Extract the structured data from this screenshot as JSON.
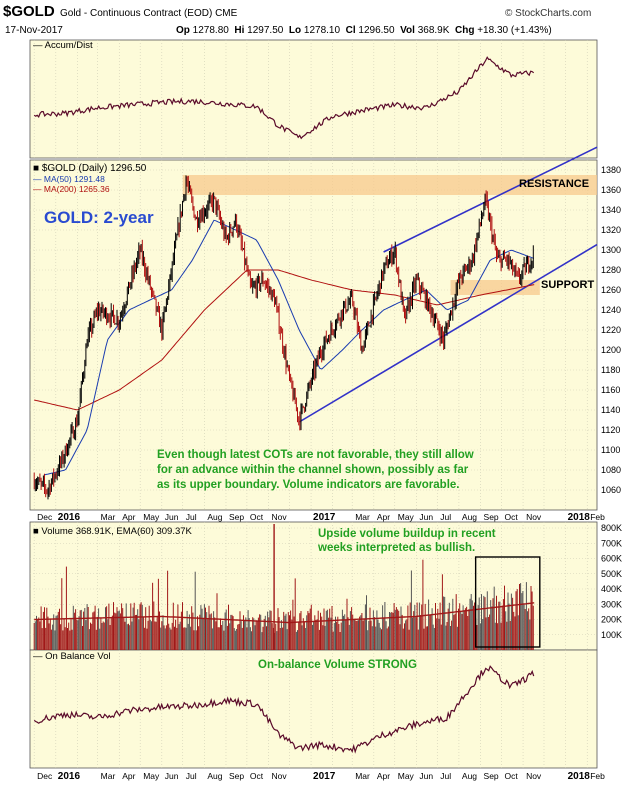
{
  "header": {
    "symbol": "$GOLD",
    "name": "Gold - Continuous Contract (EOD)",
    "exchange": "CME",
    "brand": "© StockCharts.com",
    "date": "17-Nov-2017",
    "op_label": "Op",
    "op": "1278.80",
    "hi_label": "Hi",
    "hi": "1297.50",
    "lo_label": "Lo",
    "lo": "1278.10",
    "cl_label": "Cl",
    "cl": "1296.50",
    "vol_label": "Vol",
    "vol": "368.9K",
    "chg_label": "Chg",
    "chg": "+18.30 (+1.43%)"
  },
  "colors": {
    "panel_bg": "#fdfbd9",
    "price": "#000000",
    "ma50": "#1a3cb0",
    "ma200": "#b01010",
    "channel": "#3232c8",
    "band": "#f7c98c",
    "annotation": "#22a022",
    "vol_bar": "#a01818",
    "box": "#000000"
  },
  "chart_data": [
    {
      "type": "line",
      "panel": "accum-dist",
      "title": "Accum/Dist",
      "grid": true,
      "series": [
        {
          "name": "Accum/Dist",
          "x": [
            "2015-12-01",
            "2016-01-15",
            "2016-03-01",
            "2016-04-15",
            "2016-06-01",
            "2016-07-15",
            "2016-09-01",
            "2016-10-15",
            "2016-11-15",
            "2016-12-15",
            "2017-02-01",
            "2017-03-15",
            "2017-05-01",
            "2017-06-15",
            "2017-08-01",
            "2017-09-10",
            "2017-10-15",
            "2017-11-17"
          ],
          "y": [
            41,
            42,
            46,
            48,
            50,
            51,
            49,
            47,
            33,
            24,
            40,
            44,
            48,
            46,
            58,
            82,
            70,
            72
          ]
        }
      ]
    },
    {
      "type": "line",
      "panel": "price",
      "legend": [
        "$GOLD (Daily) 1296.50",
        "MA(50) 1291.48",
        "MA(200) 1265.36"
      ],
      "ylim": [
        1040,
        1390
      ],
      "yticks": [
        "1060",
        "1080",
        "1100",
        "1120",
        "1140",
        "1160",
        "1180",
        "1200",
        "1220",
        "1240",
        "1260",
        "1280",
        "1300",
        "1320",
        "1340",
        "1360",
        "1380"
      ],
      "grid": true,
      "series": [
        {
          "name": "$GOLD (Daily)",
          "x": [
            "2015-12-01",
            "2015-12-20",
            "2016-01-10",
            "2016-02-01",
            "2016-02-15",
            "2016-03-01",
            "2016-04-01",
            "2016-05-01",
            "2016-06-01",
            "2016-06-15",
            "2016-07-06",
            "2016-07-20",
            "2016-08-15",
            "2016-09-01",
            "2016-09-15",
            "2016-10-07",
            "2016-10-25",
            "2016-11-10",
            "2016-12-01",
            "2016-12-15",
            "2017-01-15",
            "2017-02-15",
            "2017-03-01",
            "2017-03-15",
            "2017-04-15",
            "2017-05-01",
            "2017-05-15",
            "2017-06-01",
            "2017-06-15",
            "2017-07-10",
            "2017-08-01",
            "2017-08-20",
            "2017-09-08",
            "2017-09-25",
            "2017-10-10",
            "2017-10-25",
            "2017-11-17"
          ],
          "y": [
            1070,
            1060,
            1090,
            1130,
            1210,
            1240,
            1230,
            1300,
            1220,
            1280,
            1370,
            1330,
            1350,
            1310,
            1330,
            1260,
            1270,
            1250,
            1170,
            1130,
            1200,
            1240,
            1250,
            1200,
            1280,
            1300,
            1230,
            1270,
            1250,
            1210,
            1270,
            1290,
            1350,
            1290,
            1290,
            1270,
            1296.5
          ]
        },
        {
          "name": "MA(50)",
          "x": [
            "2015-12-15",
            "2016-01-15",
            "2016-02-15",
            "2016-03-15",
            "2016-04-15",
            "2016-05-15",
            "2016-06-15",
            "2016-07-15",
            "2016-08-15",
            "2016-09-15",
            "2016-10-15",
            "2016-11-15",
            "2016-12-15",
            "2017-01-15",
            "2017-02-15",
            "2017-03-15",
            "2017-04-15",
            "2017-05-15",
            "2017-06-15",
            "2017-07-15",
            "2017-08-15",
            "2017-09-15",
            "2017-10-15",
            "2017-11-17"
          ],
          "y": [
            1075,
            1080,
            1120,
            1210,
            1240,
            1250,
            1260,
            1290,
            1330,
            1320,
            1310,
            1270,
            1220,
            1180,
            1200,
            1220,
            1240,
            1250,
            1260,
            1240,
            1250,
            1290,
            1300,
            1291.48
          ]
        },
        {
          "name": "MA(200)",
          "x": [
            "2015-12-01",
            "2016-02-01",
            "2016-04-01",
            "2016-06-01",
            "2016-08-01",
            "2016-10-01",
            "2016-11-15",
            "2017-01-01",
            "2017-03-01",
            "2017-05-01",
            "2017-07-01",
            "2017-09-01",
            "2017-11-17"
          ],
          "y": [
            1150,
            1140,
            1160,
            1190,
            1240,
            1280,
            1280,
            1270,
            1260,
            1255,
            1245,
            1255,
            1265.36
          ]
        }
      ],
      "annotations": [
        {
          "text": "GOLD: 2-year",
          "kind": "label"
        },
        {
          "text": "RESISTANCE",
          "kind": "label"
        },
        {
          "text": "SUPPORT",
          "kind": "label"
        },
        {
          "text": "Even though latest COTs are not favorable, they still allow",
          "kind": "note"
        },
        {
          "text": "for an advance within the channel shown, possibly as far",
          "kind": "note"
        },
        {
          "text": "as its upper boundary. Volume indicators are favorable.",
          "kind": "note"
        }
      ],
      "resistance_band": [
        1355,
        1375
      ],
      "support_band": [
        1255,
        1270
      ],
      "channel_lower": {
        "x": [
          "2016-12-15",
          "2017-11-17"
        ],
        "y": [
          1128,
          1268
        ]
      },
      "channel_upper": {
        "x": [
          "2017-04-15",
          "2017-11-17"
        ],
        "y": [
          1298,
          1372
        ]
      },
      "x_ticks": [
        "Dec",
        "2016",
        "Mar",
        "Apr",
        "May",
        "Jun",
        "Jul",
        "Aug",
        "Sep",
        "Oct",
        "Nov",
        "2017",
        "Mar",
        "Apr",
        "May",
        "Jun",
        "Jul",
        "Aug",
        "Sep",
        "Oct",
        "Nov",
        "2018",
        "Feb"
      ]
    },
    {
      "type": "bar",
      "panel": "volume",
      "title": "Volume 368.91K, EMA(60) 309.37K",
      "ylim": [
        0,
        800000
      ],
      "yticks": [
        "100K",
        "200K",
        "300K",
        "400K",
        "500K",
        "600K",
        "700K",
        "800K"
      ],
      "grid": true,
      "note_lines": [
        "Upside volume buildup in recent",
        "weeks interpreted as bullish."
      ],
      "series": [
        {
          "name": "EMA(60)",
          "x": [
            "2015-12-01",
            "2016-06-01",
            "2016-12-01",
            "2017-06-01",
            "2017-11-17"
          ],
          "y": [
            200000,
            220000,
            180000,
            220000,
            309370
          ]
        }
      ]
    },
    {
      "type": "line",
      "panel": "obv",
      "title": "On Balance Vol",
      "grid": true,
      "note": "On-balance Volume STRONG",
      "series": [
        {
          "name": "On Balance Vol",
          "x": [
            "2015-12-01",
            "2016-01-15",
            "2016-03-01",
            "2016-04-15",
            "2016-06-01",
            "2016-07-15",
            "2016-09-01",
            "2016-10-15",
            "2016-11-15",
            "2016-12-15",
            "2017-01-15",
            "2017-03-01",
            "2017-04-15",
            "2017-06-01",
            "2017-07-15",
            "2017-09-10",
            "2017-10-15",
            "2017-11-17"
          ],
          "y": [
            38,
            42,
            40,
            44,
            46,
            47,
            50,
            48,
            30,
            22,
            24,
            21,
            30,
            36,
            40,
            70,
            58,
            66
          ]
        }
      ]
    }
  ]
}
